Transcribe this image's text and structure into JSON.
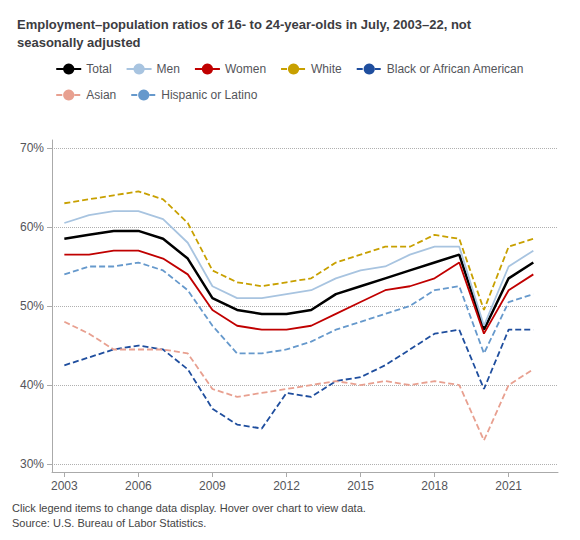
{
  "chart_data": {
    "type": "line",
    "title": "Employment–population ratios of 16- to 24-year-olds in July, 2003–22, not\nseasonally adjusted",
    "annotations": [
      "Click legend items to change data display. Hover over chart to view data.",
      "Source: U.S. Bureau of Labor Statistics."
    ],
    "x": [
      2003,
      2004,
      2005,
      2006,
      2007,
      2008,
      2009,
      2010,
      2011,
      2012,
      2013,
      2014,
      2015,
      2016,
      2017,
      2018,
      2019,
      2020,
      2021,
      2022
    ],
    "series": [
      {
        "name": "Total",
        "color": "#000000",
        "line_style": "solid",
        "values": [
          58.5,
          59.0,
          59.5,
          59.5,
          58.5,
          56.0,
          51.0,
          49.5,
          49.0,
          49.0,
          49.5,
          51.5,
          52.5,
          53.5,
          54.5,
          55.5,
          56.5,
          47.0,
          53.5,
          55.5
        ]
      },
      {
        "name": "Men",
        "color": "#a8c4e0",
        "line_style": "solid",
        "values": [
          60.5,
          61.5,
          62.0,
          62.0,
          61.0,
          58.0,
          52.5,
          51.0,
          51.0,
          51.5,
          52.0,
          53.5,
          54.5,
          55.0,
          56.5,
          57.5,
          57.5,
          47.5,
          55.0,
          57.0
        ]
      },
      {
        "name": "Women",
        "color": "#c00000",
        "line_style": "solid",
        "values": [
          56.5,
          56.5,
          57.0,
          57.0,
          56.0,
          54.0,
          49.5,
          47.5,
          47.0,
          47.0,
          47.5,
          49.0,
          50.5,
          52.0,
          52.5,
          53.5,
          55.5,
          46.5,
          52.0,
          54.0
        ]
      },
      {
        "name": "White",
        "color": "#c8a000",
        "line_style": "dashed",
        "values": [
          63.0,
          63.5,
          64.0,
          64.5,
          63.5,
          60.5,
          54.5,
          53.0,
          52.5,
          53.0,
          53.5,
          55.5,
          56.5,
          57.5,
          57.5,
          59.0,
          58.5,
          49.5,
          57.5,
          58.5
        ]
      },
      {
        "name": "Black or African American",
        "color": "#1f4e9e",
        "line_style": "dashed",
        "values": [
          42.5,
          43.5,
          44.5,
          45.0,
          44.5,
          42.0,
          37.0,
          35.0,
          34.5,
          39.0,
          38.5,
          40.5,
          41.0,
          42.5,
          44.5,
          46.5,
          47.0,
          39.5,
          47.0,
          47.0
        ]
      },
      {
        "name": "Asian",
        "color": "#e8a090",
        "line_style": "dashed",
        "values": [
          48.0,
          46.5,
          44.5,
          44.5,
          44.5,
          44.0,
          39.5,
          38.5,
          39.0,
          39.5,
          40.0,
          40.5,
          40.0,
          40.5,
          40.0,
          40.5,
          40.0,
          33.0,
          40.0,
          42.0
        ]
      },
      {
        "name": "Hispanic or Latino",
        "color": "#6699cc",
        "line_style": "dashed",
        "values": [
          54.0,
          55.0,
          55.0,
          55.5,
          54.5,
          52.0,
          47.5,
          44.0,
          44.0,
          44.5,
          45.5,
          47.0,
          48.0,
          49.0,
          50.0,
          52.0,
          52.5,
          44.0,
          50.5,
          51.5
        ]
      }
    ],
    "xlim": [
      2002.5,
      2023.0
    ],
    "xticks": [
      2003,
      2006,
      2009,
      2012,
      2015,
      2018,
      2021
    ],
    "ylim": [
      29,
      71
    ],
    "yticks": [
      {
        "value": 30,
        "label": "30%"
      },
      {
        "value": 40,
        "label": "40%"
      },
      {
        "value": 50,
        "label": "50%"
      },
      {
        "value": 60,
        "label": "60%"
      },
      {
        "value": 70,
        "label": "70%"
      }
    ],
    "grid": true,
    "legend": "top"
  }
}
